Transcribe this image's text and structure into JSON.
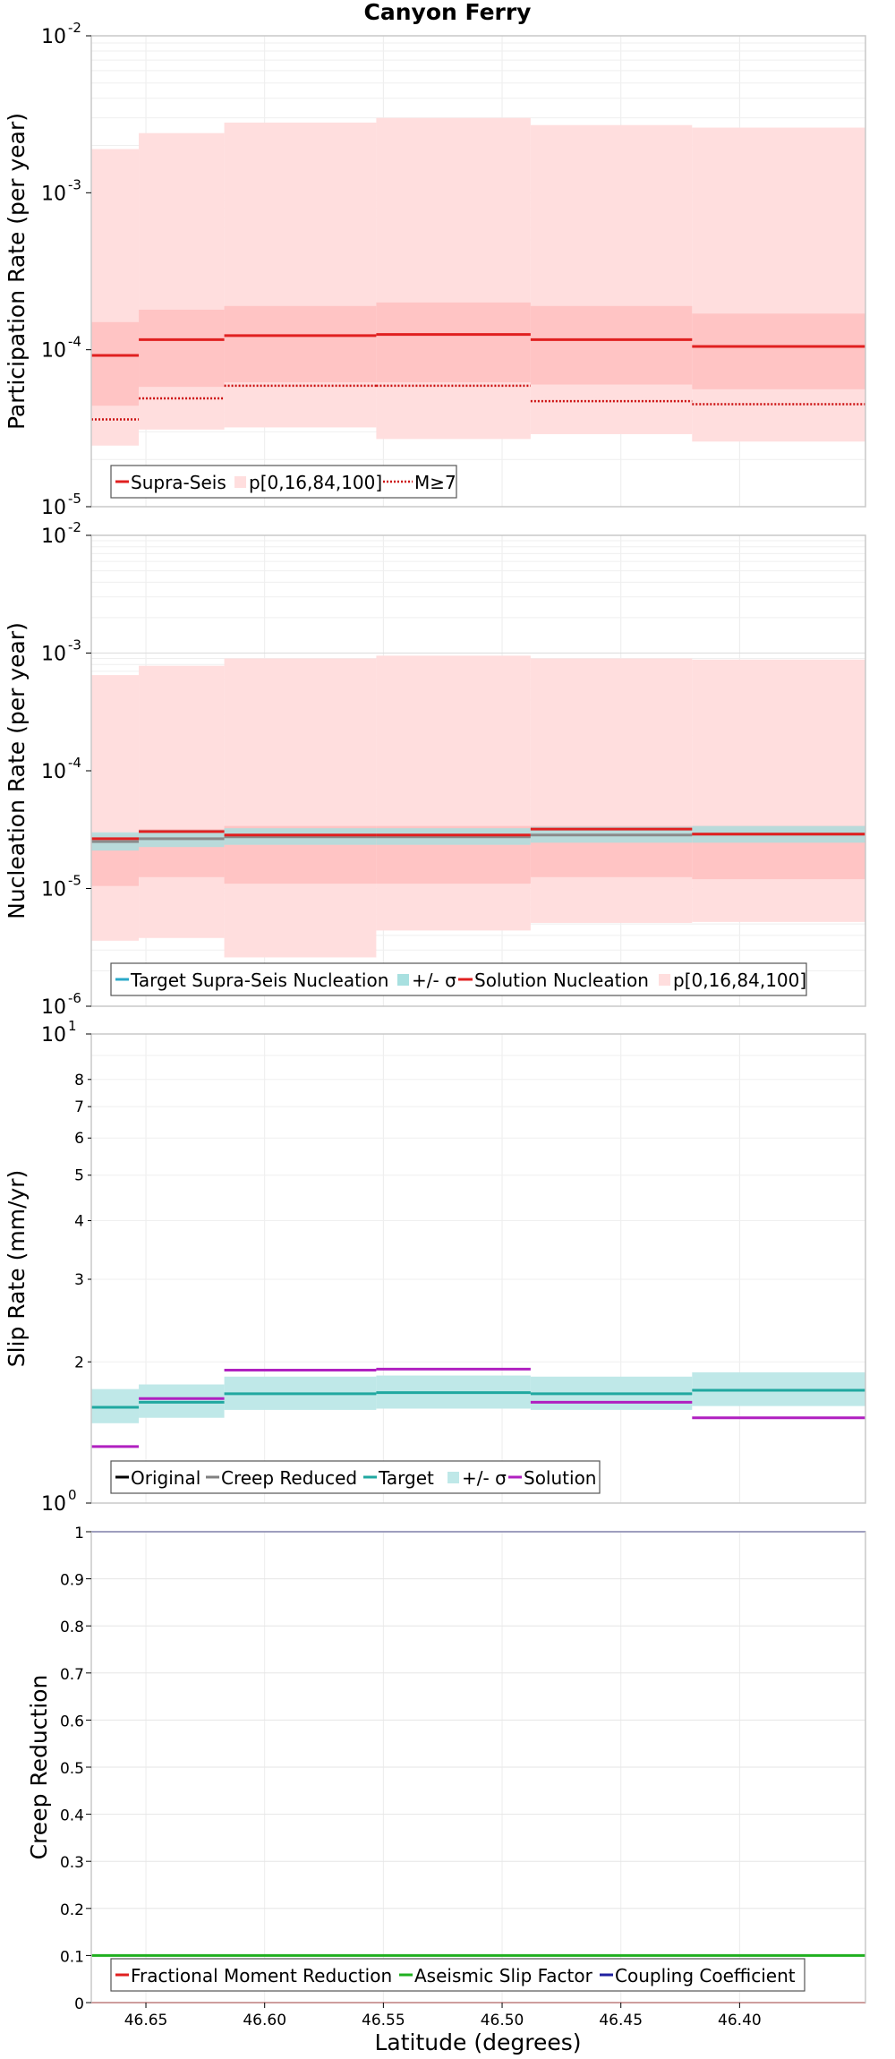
{
  "figure": {
    "title": "Canyon Ferry",
    "xlabel": "Latitude (degrees)",
    "x_tick_labels": [
      "46.65",
      "46.60",
      "46.55",
      "46.50",
      "46.45",
      "46.40"
    ]
  },
  "chart_data": [
    {
      "type": "line",
      "ylabel": "Participation Rate (per year)",
      "log_scale": true,
      "ylim": [
        1e-05,
        0.01
      ],
      "xlim": [
        46.673,
        46.347
      ],
      "x_inverted": true,
      "grid": true,
      "legend_placement": "bottom-left",
      "y_tick_labels": [
        {
          "base": "10",
          "exp": "-2",
          "value": 0.01
        },
        {
          "base": "10",
          "exp": "-3",
          "value": 0.001
        },
        {
          "base": "10",
          "exp": "-4",
          "value": 0.0001
        },
        {
          "base": "10",
          "exp": "-5",
          "value": 1e-05
        }
      ],
      "legend": [
        "Supra-Seis",
        "p[0,16,84,100]",
        "M≥7"
      ],
      "segments": [
        {
          "x": [
            46.673,
            46.653
          ],
          "min": 2.45e-05,
          "p16": 4.4e-05,
          "p84": 0.00015,
          "max": 0.0019,
          "supra_seis": 9.2e-05,
          "m_ge_7": 3.6e-05
        },
        {
          "x": [
            46.653,
            46.617
          ],
          "min": 3.1e-05,
          "p16": 5.8e-05,
          "p84": 0.00018,
          "max": 0.0024,
          "supra_seis": 0.000116,
          "m_ge_7": 4.9e-05
        },
        {
          "x": [
            46.617,
            46.553
          ],
          "min": 3.2e-05,
          "p16": 6.2e-05,
          "p84": 0.00019,
          "max": 0.0028,
          "supra_seis": 0.000123,
          "m_ge_7": 5.9e-05
        },
        {
          "x": [
            46.553,
            46.488
          ],
          "min": 2.7e-05,
          "p16": 6.2e-05,
          "p84": 0.0002,
          "max": 0.003,
          "supra_seis": 0.000125,
          "m_ge_7": 5.9e-05
        },
        {
          "x": [
            46.488,
            46.42
          ],
          "min": 2.9e-05,
          "p16": 6e-05,
          "p84": 0.00019,
          "max": 0.0027,
          "supra_seis": 0.000116,
          "m_ge_7": 4.7e-05
        },
        {
          "x": [
            46.42,
            46.347
          ],
          "min": 2.6e-05,
          "p16": 5.6e-05,
          "p84": 0.00017,
          "max": 0.0026,
          "supra_seis": 0.000105,
          "m_ge_7": 4.5e-05
        }
      ],
      "colors": {
        "supra_seis": "#e02020",
        "band_outer": "#ffdede",
        "band_inner": "#ffc4c4",
        "m_ge_7": "#cc1010"
      }
    },
    {
      "type": "line",
      "ylabel": "Nucleation Rate (per year)",
      "log_scale": true,
      "ylim": [
        1e-06,
        0.01
      ],
      "xlim": [
        46.673,
        46.347
      ],
      "x_inverted": true,
      "grid": true,
      "legend_placement": "bottom-left",
      "y_tick_labels": [
        {
          "base": "10",
          "exp": "-2",
          "value": 0.01
        },
        {
          "base": "10",
          "exp": "-3",
          "value": 0.001
        },
        {
          "base": "10",
          "exp": "-4",
          "value": 0.0001
        },
        {
          "base": "10",
          "exp": "-5",
          "value": 1e-05
        },
        {
          "base": "10",
          "exp": "-6",
          "value": 1e-06
        }
      ],
      "legend": [
        "Target Supra-Seis Nucleation",
        "+/- σ",
        "Solution Nucleation",
        "p[0,16,84,100]"
      ],
      "segments": [
        {
          "x": [
            46.673,
            46.653
          ],
          "min": 3.6e-06,
          "p16": 1.05e-05,
          "p84": 2.9e-05,
          "max": 0.00065,
          "target": 2.5e-05,
          "target_lo": 2.1e-05,
          "target_hi": 3e-05,
          "solution": 2.65e-05
        },
        {
          "x": [
            46.653,
            46.617
          ],
          "min": 3.8e-06,
          "p16": 1.25e-05,
          "p84": 3.2e-05,
          "max": 0.00078,
          "target": 2.65e-05,
          "target_lo": 2.25e-05,
          "target_hi": 3.15e-05,
          "solution": 3.05e-05
        },
        {
          "x": [
            46.617,
            46.553
          ],
          "min": 2.6e-06,
          "p16": 1.1e-05,
          "p84": 3.4e-05,
          "max": 0.0009,
          "target": 2.75e-05,
          "target_lo": 2.35e-05,
          "target_hi": 3.25e-05,
          "solution": 2.85e-05
        },
        {
          "x": [
            46.553,
            46.488
          ],
          "min": 4.4e-06,
          "p16": 1.1e-05,
          "p84": 3.4e-05,
          "max": 0.00095,
          "target": 2.75e-05,
          "target_lo": 2.35e-05,
          "target_hi": 3.25e-05,
          "solution": 2.85e-05
        },
        {
          "x": [
            46.488,
            46.42
          ],
          "min": 5.1e-06,
          "p16": 1.25e-05,
          "p84": 3.4e-05,
          "max": 0.0009,
          "target": 2.85e-05,
          "target_lo": 2.45e-05,
          "target_hi": 3.35e-05,
          "solution": 3.2e-05
        },
        {
          "x": [
            46.42,
            46.347
          ],
          "min": 5.2e-06,
          "p16": 1.2e-05,
          "p84": 3.4e-05,
          "max": 0.00088,
          "target": 2.9e-05,
          "target_lo": 2.45e-05,
          "target_hi": 3.4e-05,
          "solution": 2.9e-05
        }
      ],
      "colors": {
        "target": "#8a8a8a",
        "target_legend": "#2aa8c8",
        "sigma": "#a8e0e0",
        "solution": "#e02020",
        "band_outer": "#ffdede",
        "band_inner": "#ffc4c4"
      }
    },
    {
      "type": "line",
      "ylabel": "Slip Rate (mm/yr)",
      "log_scale": true,
      "ylim": [
        1,
        10
      ],
      "xlim": [
        46.673,
        46.347
      ],
      "x_inverted": true,
      "grid": true,
      "legend_placement": "bottom-left",
      "y_tick_labels": [
        {
          "base": "10",
          "exp": "0",
          "value": 1
        },
        {
          "base": "10",
          "exp": "1",
          "value": 10
        }
      ],
      "y_minor_tick_labels": [
        "2",
        "3",
        "4",
        "5",
        "6",
        "7",
        "8"
      ],
      "legend": [
        "Original",
        "Creep Reduced",
        "Target",
        "+/- σ",
        "Solution"
      ],
      "segments": [
        {
          "x": [
            46.673,
            46.653
          ],
          "target": 1.6,
          "sigma_lo": 1.48,
          "sigma_hi": 1.75,
          "solution": 1.32
        },
        {
          "x": [
            46.653,
            46.617
          ],
          "target": 1.64,
          "sigma_lo": 1.52,
          "sigma_hi": 1.79,
          "solution": 1.67
        },
        {
          "x": [
            46.617,
            46.553
          ],
          "target": 1.71,
          "sigma_lo": 1.58,
          "sigma_hi": 1.86,
          "solution": 1.92
        },
        {
          "x": [
            46.553,
            46.488
          ],
          "target": 1.72,
          "sigma_lo": 1.59,
          "sigma_hi": 1.87,
          "solution": 1.93
        },
        {
          "x": [
            46.488,
            46.42
          ],
          "target": 1.71,
          "sigma_lo": 1.58,
          "sigma_hi": 1.86,
          "solution": 1.64
        },
        {
          "x": [
            46.42,
            46.347
          ],
          "target": 1.74,
          "sigma_lo": 1.61,
          "sigma_hi": 1.9,
          "solution": 1.52
        }
      ],
      "colors": {
        "original": "#000000",
        "creep_reduced": "#808080",
        "target": "#20a8a0",
        "sigma": "#bfe8e8",
        "solution": "#b020c0"
      }
    },
    {
      "type": "line",
      "ylabel": "Creep Reduction",
      "log_scale": false,
      "ylim": [
        0,
        1
      ],
      "xlim": [
        46.673,
        46.347
      ],
      "x_inverted": true,
      "grid": true,
      "legend_placement": "bottom-left",
      "y_tick_labels": [
        "0",
        "0.1",
        "0.2",
        "0.3",
        "0.4",
        "0.5",
        "0.6",
        "0.7",
        "0.8",
        "0.9",
        "1"
      ],
      "legend": [
        "Fractional Moment Reduction",
        "Aseismic Slip Factor",
        "Coupling Coefficient"
      ],
      "series": [
        {
          "name": "Fractional Moment Reduction",
          "x": [
            46.673,
            46.347
          ],
          "y": [
            0,
            0
          ],
          "color": "#e02020"
        },
        {
          "name": "Aseismic Slip Factor",
          "x": [
            46.673,
            46.347
          ],
          "y": [
            0.1,
            0.1
          ],
          "color": "#20b020"
        },
        {
          "name": "Coupling Coefficient",
          "x": [
            46.673,
            46.347
          ],
          "y": [
            1,
            1
          ],
          "color": "#2020a0"
        }
      ]
    }
  ]
}
